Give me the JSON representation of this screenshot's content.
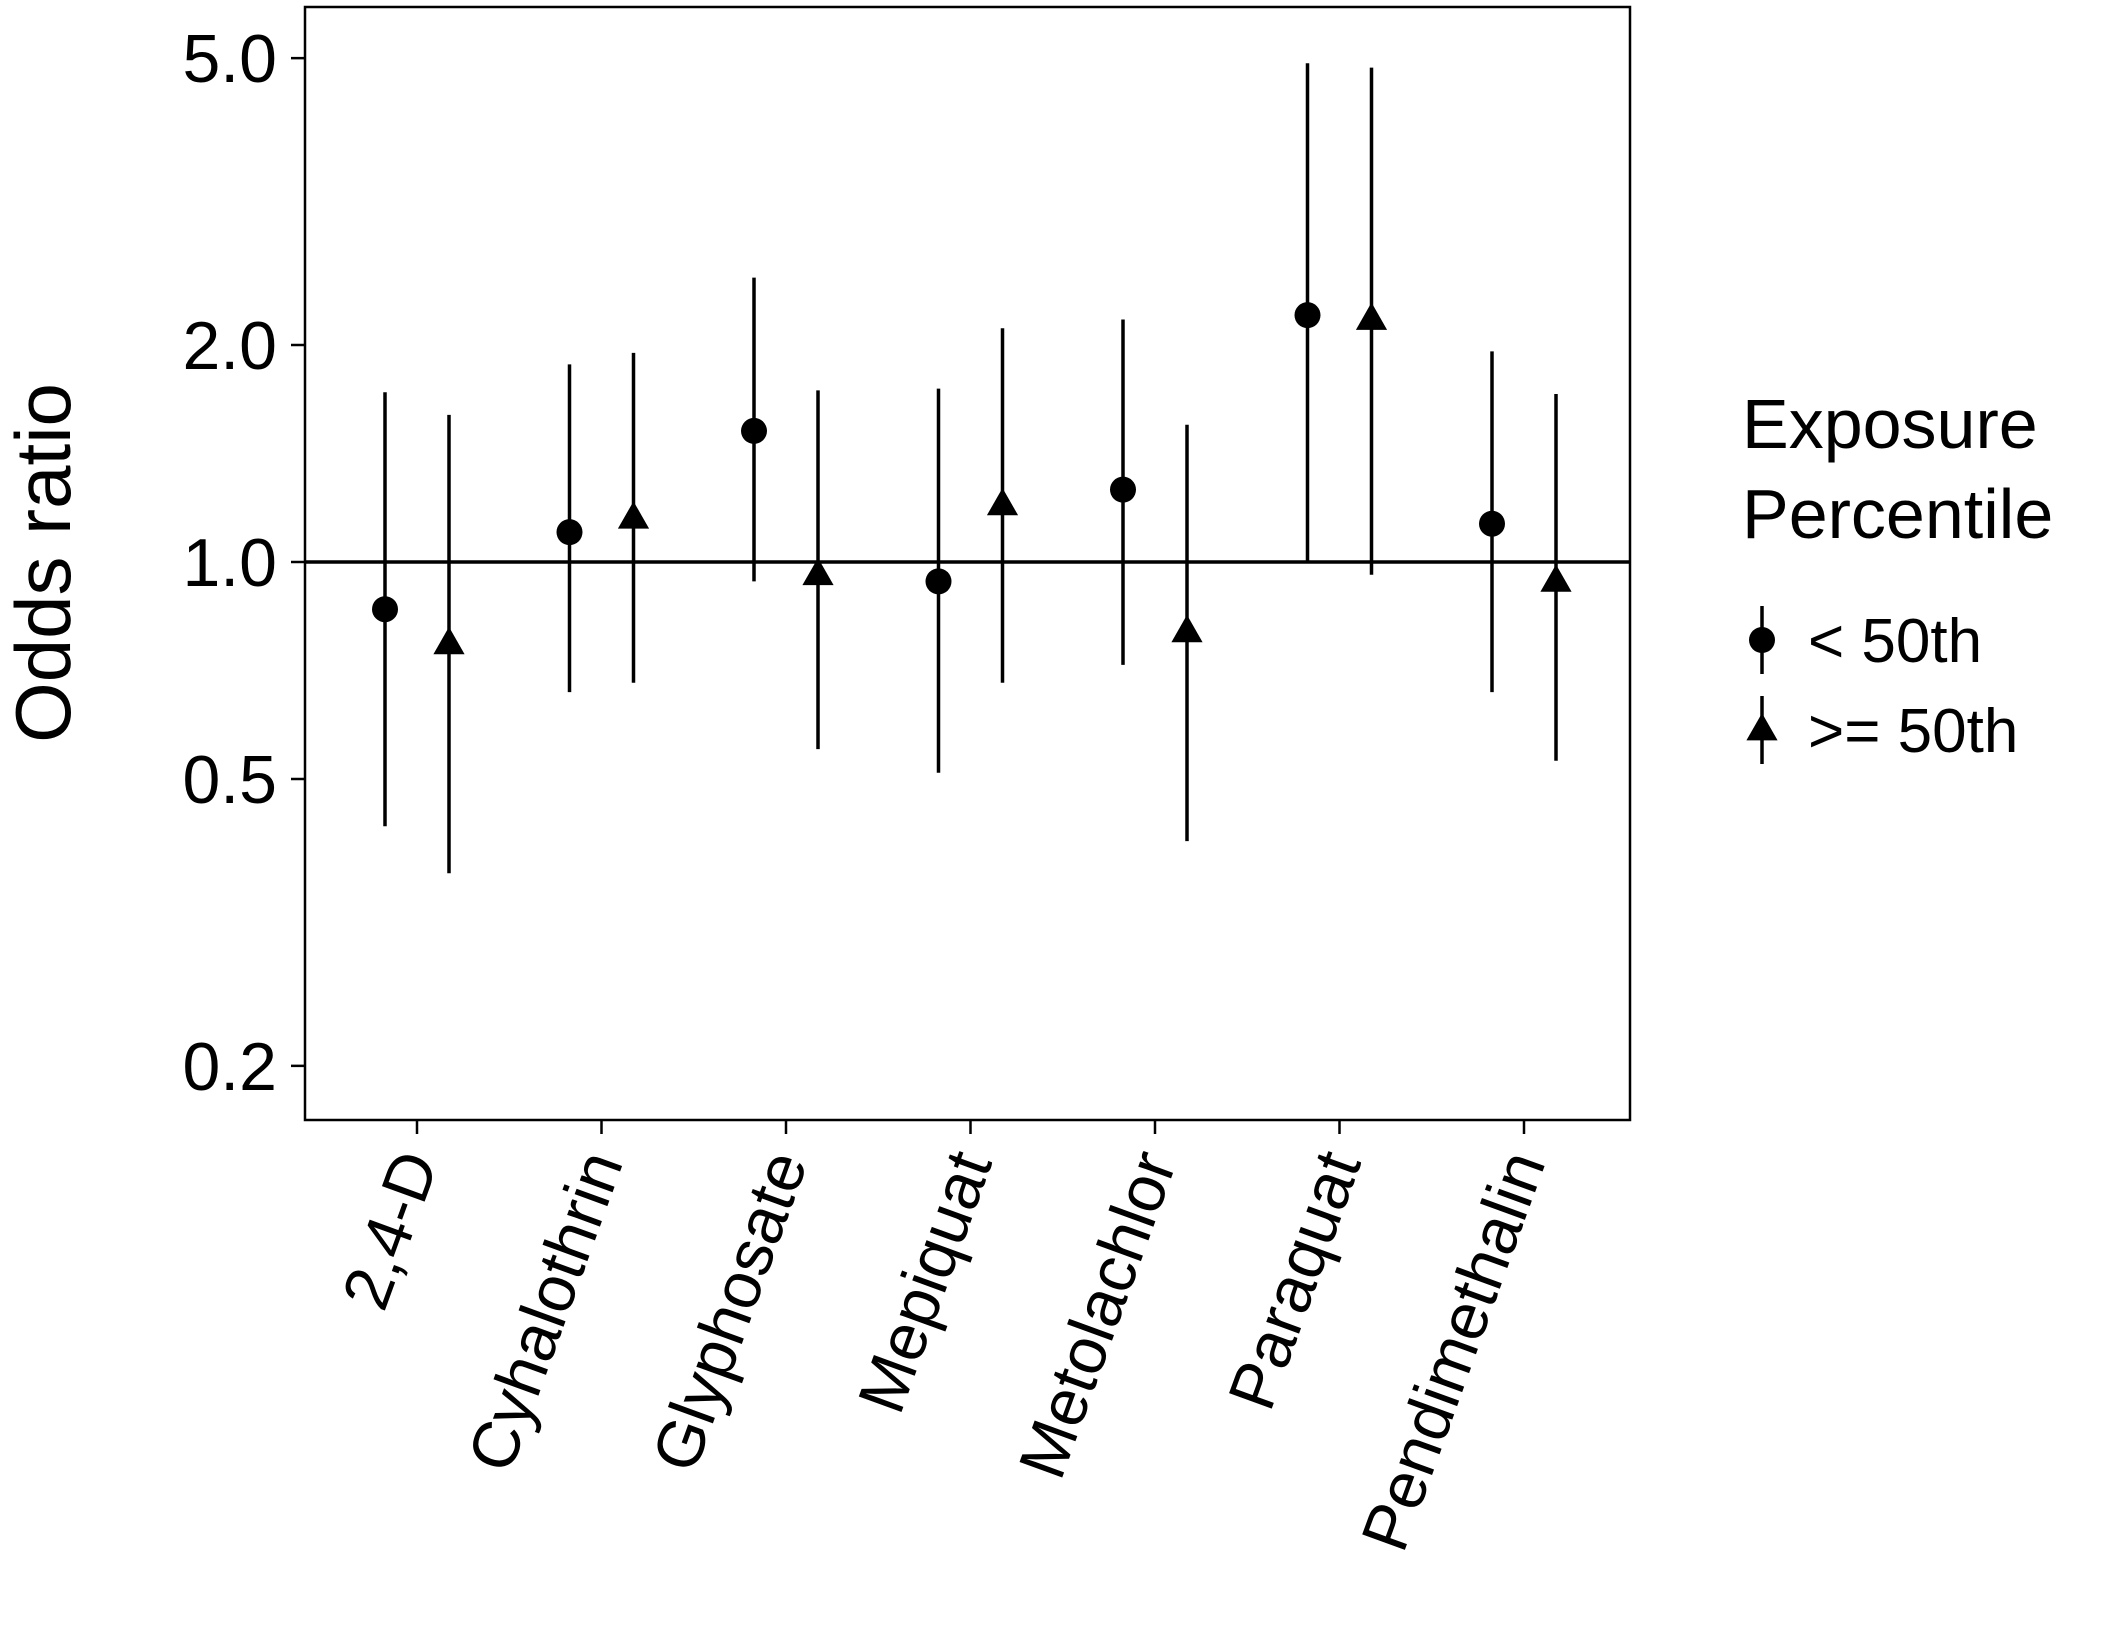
{
  "chart_data": {
    "type": "scatter",
    "subtype": "forest-plot-with-error-bars",
    "ylabel": "Odds ratio",
    "xlabel": "",
    "y_scale": "log",
    "ylim": [
      0.16,
      5.3
    ],
    "yticks": [
      0.2,
      0.5,
      1.0,
      2.0,
      5.0
    ],
    "ytick_labels": [
      "0.2",
      "0.5",
      "1.0",
      "2.0",
      "5.0"
    ],
    "reference_line": 1.0,
    "categories": [
      "2,4-D",
      "Cyhalothrin",
      "Glyphosate",
      "Mepiquat",
      "Metolachlor",
      "Paraquat",
      "Pendimethalin"
    ],
    "legend": {
      "title_lines": [
        "Exposure",
        "Percentile"
      ],
      "position": "right"
    },
    "series": [
      {
        "name": "< 50th",
        "marker": "circle",
        "estimate": [
          0.86,
          1.1,
          1.52,
          0.94,
          1.26,
          2.2,
          1.13
        ],
        "lower": [
          0.43,
          0.66,
          0.94,
          0.51,
          0.72,
          1.0,
          0.66
        ],
        "upper": [
          1.72,
          1.88,
          2.48,
          1.74,
          2.17,
          4.92,
          1.96
        ]
      },
      {
        "name": ">= 50th",
        "marker": "triangle",
        "estimate": [
          0.77,
          1.15,
          0.96,
          1.2,
          0.8,
          2.17,
          0.94
        ],
        "lower": [
          0.37,
          0.68,
          0.55,
          0.68,
          0.41,
          0.96,
          0.53
        ],
        "upper": [
          1.6,
          1.95,
          1.73,
          2.11,
          1.55,
          4.85,
          1.71
        ]
      }
    ]
  },
  "colors": {
    "ink": "#000000",
    "background": "#ffffff"
  }
}
